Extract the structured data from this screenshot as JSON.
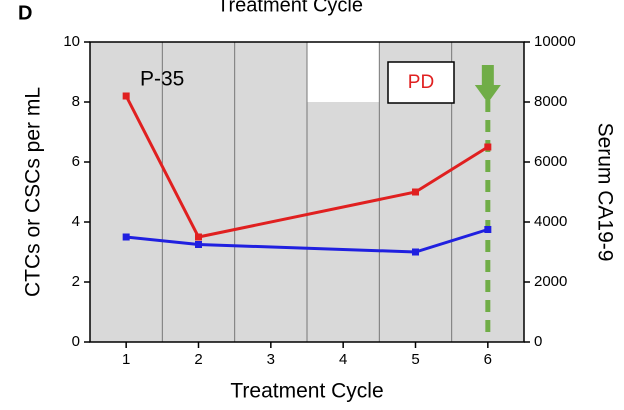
{
  "chart_data": {
    "type": "line",
    "panel_label": "D",
    "top_title": "Treatment Cycle",
    "x_label": "Treatment Cycle",
    "y_label": "CTCs or CSCs per mL",
    "y2_label": "Serum CA19-9",
    "annotations": {
      "patient": "P-35",
      "status": "PD"
    },
    "x": [
      1,
      2,
      5,
      6
    ],
    "series": [
      {
        "color": "#e02020",
        "values": [
          8200,
          3500,
          5000,
          6500
        ],
        "axis": "y2"
      },
      {
        "color": "#2020e0",
        "values": [
          3.5,
          3.25,
          3.0,
          3.75
        ]
      }
    ],
    "xlim": [
      0.5,
      6.5
    ],
    "xticks": [
      1,
      2,
      3,
      4,
      5,
      6
    ],
    "ylim": [
      0,
      10
    ],
    "yticks": [
      0,
      2,
      4,
      6,
      8,
      10
    ],
    "y2lim": [
      0,
      10000
    ],
    "y2ticks": [
      0,
      2000,
      4000,
      6000,
      8000,
      10000
    ],
    "background_color": "#d9d9d9",
    "dividers": [
      1.5,
      2.5,
      3.5,
      4.5,
      5.5
    ],
    "blank_region": {
      "x": [
        3.5,
        4.5
      ],
      "y": [
        8,
        10
      ]
    },
    "arrow": {
      "x": 6,
      "color": "#70ad47"
    }
  }
}
